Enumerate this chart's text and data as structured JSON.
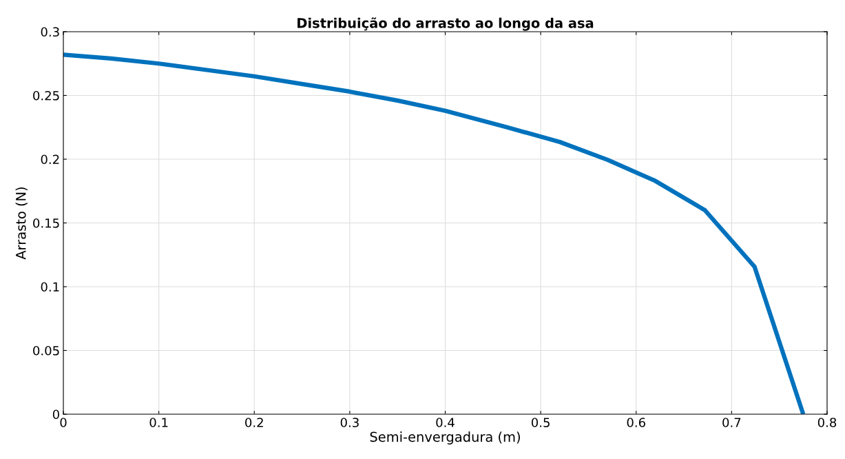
{
  "chart_data": {
    "type": "line",
    "title": "Distribuição do arrasto ao longo da asa",
    "xlabel": "Semi-envergadura (m)",
    "ylabel": "Arrasto (N)",
    "series": [
      {
        "color": "#0072bd",
        "x": [
          0,
          0.05,
          0.1,
          0.15,
          0.2,
          0.25,
          0.3,
          0.35,
          0.4,
          0.465,
          0.52,
          0.57,
          0.62,
          0.672,
          0.724,
          0.775
        ],
        "values": [
          0.282,
          0.279,
          0.275,
          0.27,
          0.265,
          0.259,
          0.253,
          0.246,
          0.238,
          0.225,
          0.2135,
          0.1995,
          0.183,
          0.16,
          0.1157,
          0
        ]
      }
    ],
    "xlim": [
      0,
      0.8
    ],
    "xticks": [
      0,
      0.1,
      0.2,
      0.3,
      0.4,
      0.5,
      0.6,
      0.7,
      0.8
    ],
    "ylim": [
      0,
      0.3
    ],
    "yticks": [
      0,
      0.05,
      0.1,
      0.15,
      0.2,
      0.25,
      0.3
    ],
    "grid": true,
    "line_style": "solid",
    "marker": "none"
  }
}
